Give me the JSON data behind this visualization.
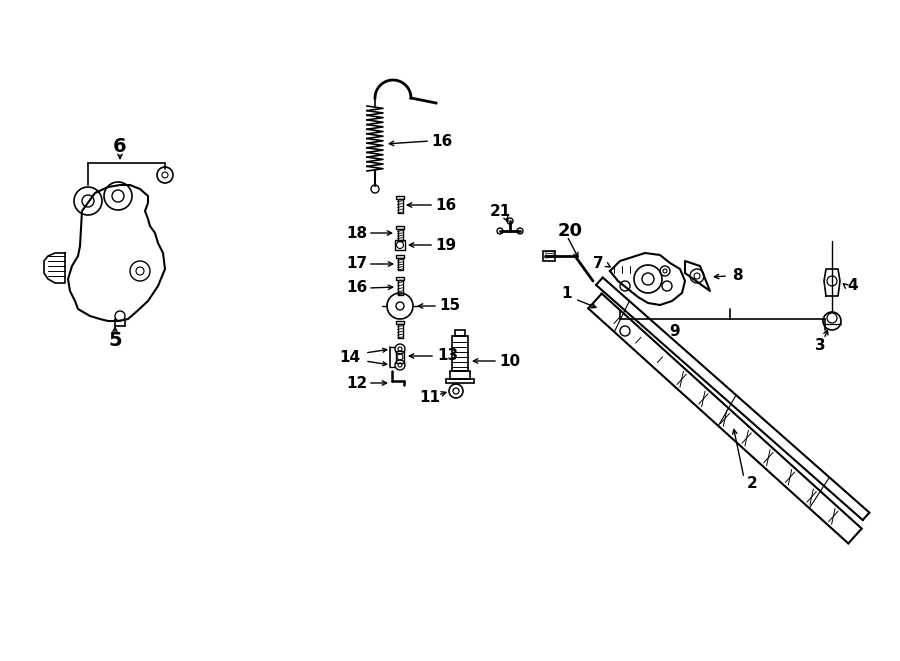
{
  "bg": "#ffffff",
  "lc": "#000000",
  "figsize": [
    9.0,
    6.61
  ],
  "dpi": 100
}
